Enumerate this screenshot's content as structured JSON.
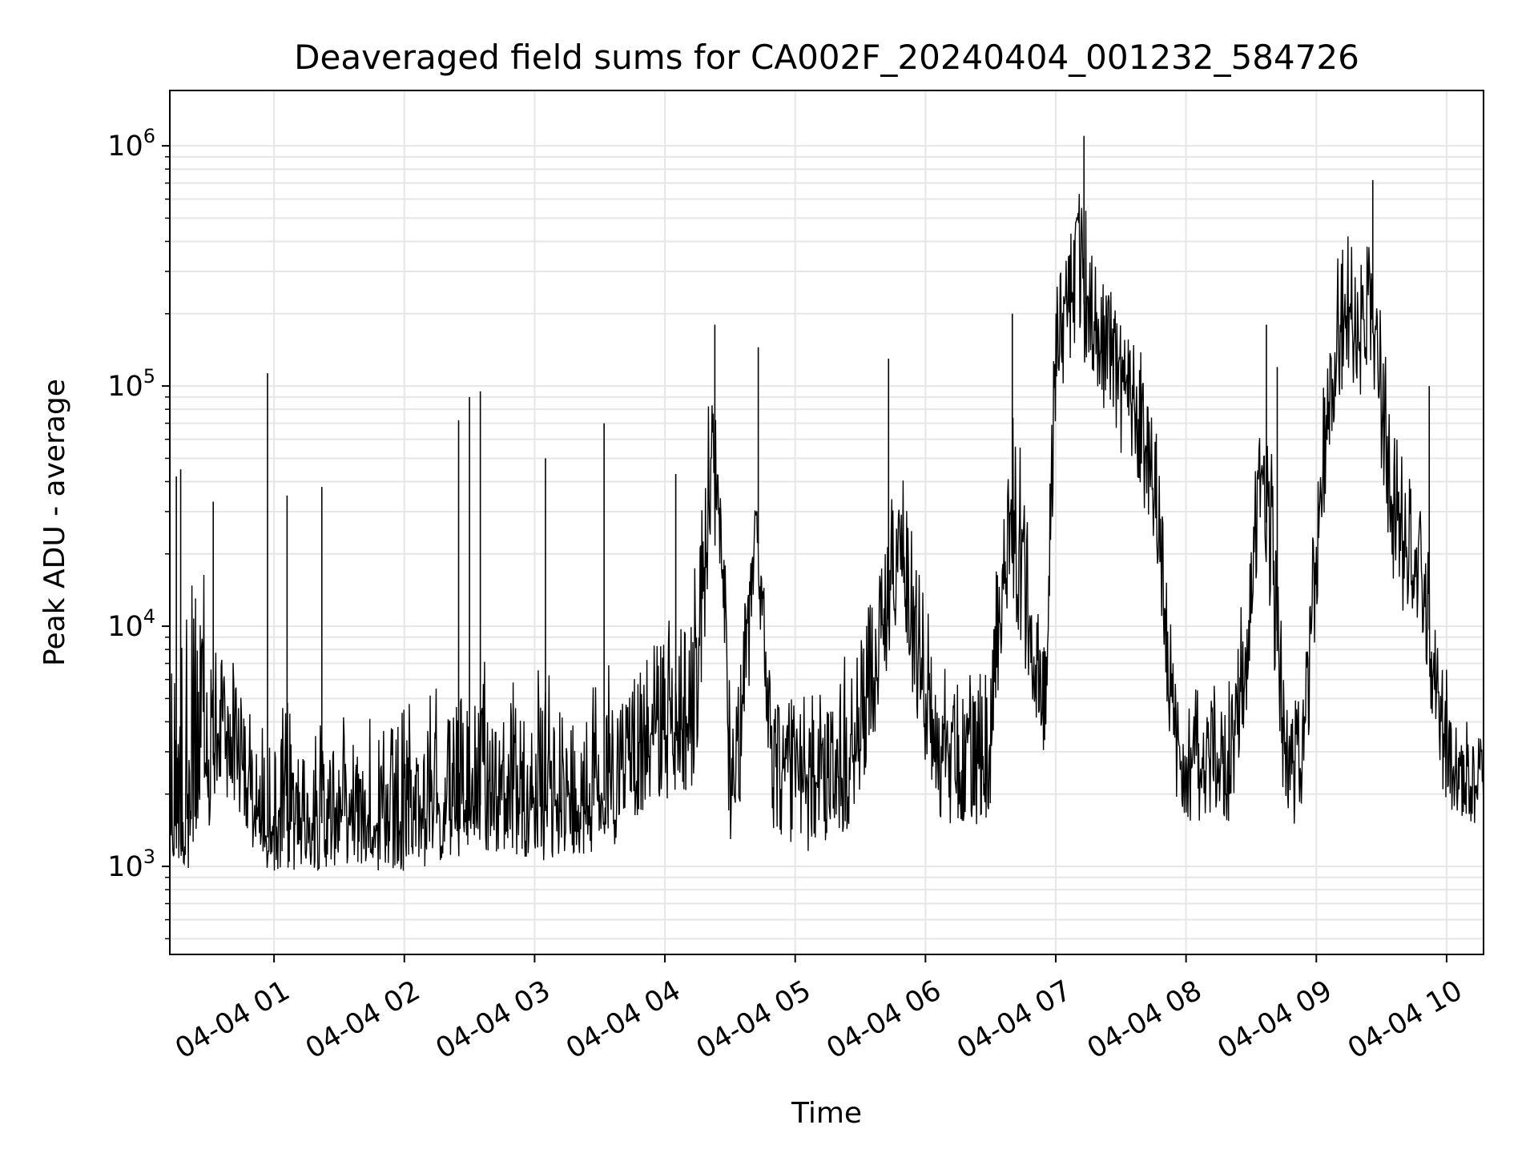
{
  "chart_data": {
    "type": "line",
    "title": "Deaveraged field sums for CA002F_20240404_001232_584726",
    "xlabel": "Time",
    "ylabel": "Peak ADU - average",
    "yscale": "log",
    "ylim": [
      430,
      1700000
    ],
    "xlim": [
      "2024-04-04 00:12",
      "2024-04-04 10:17"
    ],
    "x_ticks": [
      {
        "t": "2024-04-04 01:00",
        "label": "04-04 01"
      },
      {
        "t": "2024-04-04 02:00",
        "label": "04-04 02"
      },
      {
        "t": "2024-04-04 03:00",
        "label": "04-04 03"
      },
      {
        "t": "2024-04-04 04:00",
        "label": "04-04 04"
      },
      {
        "t": "2024-04-04 05:00",
        "label": "04-04 05"
      },
      {
        "t": "2024-04-04 06:00",
        "label": "04-04 06"
      },
      {
        "t": "2024-04-04 07:00",
        "label": "04-04 07"
      },
      {
        "t": "2024-04-04 08:00",
        "label": "04-04 08"
      },
      {
        "t": "2024-04-04 09:00",
        "label": "04-04 09"
      },
      {
        "t": "2024-04-04 10:00",
        "label": "04-04 10"
      }
    ],
    "y_ticks": [
      {
        "value": 1000,
        "base": "10",
        "exp": "3"
      },
      {
        "value": 10000,
        "base": "10",
        "exp": "4"
      },
      {
        "value": 100000,
        "base": "10",
        "exp": "5"
      },
      {
        "value": 1000000,
        "base": "10",
        "exp": "6"
      }
    ],
    "grid": true,
    "line_color": "#000000",
    "grid_color": "#e6e6e6",
    "series": [
      {
        "x": [
          "2024-04-04 00:12",
          "2024-04-04 00:20",
          "2024-04-04 00:30",
          "2024-04-04 00:36",
          "2024-04-04 00:42",
          "2024-04-04 00:48",
          "2024-04-04 00:55",
          "2024-04-04 01:05",
          "2024-04-04 01:20",
          "2024-04-04 01:35",
          "2024-04-04 01:50",
          "2024-04-04 02:05",
          "2024-04-04 02:20",
          "2024-04-04 02:35",
          "2024-04-04 02:50",
          "2024-04-04 03:05",
          "2024-04-04 03:20",
          "2024-04-04 03:35",
          "2024-04-04 03:45",
          "2024-04-04 03:55",
          "2024-04-04 04:05",
          "2024-04-04 04:15",
          "2024-04-04 04:22",
          "2024-04-04 04:25",
          "2024-04-04 04:30",
          "2024-04-04 04:35",
          "2024-04-04 04:42",
          "2024-04-04 04:50",
          "2024-04-04 04:55",
          "2024-04-04 05:05",
          "2024-04-04 05:15",
          "2024-04-04 05:25",
          "2024-04-04 05:35",
          "2024-04-04 05:42",
          "2024-04-04 05:48",
          "2024-04-04 05:55",
          "2024-04-04 06:05",
          "2024-04-04 06:15",
          "2024-04-04 06:25",
          "2024-04-04 06:30",
          "2024-04-04 06:35",
          "2024-04-04 06:40",
          "2024-04-04 06:45",
          "2024-04-04 06:50",
          "2024-04-04 06:55",
          "2024-04-04 07:00",
          "2024-04-04 07:05",
          "2024-04-04 07:10",
          "2024-04-04 07:15",
          "2024-04-04 07:20",
          "2024-04-04 07:30",
          "2024-04-04 07:40",
          "2024-04-04 07:48",
          "2024-04-04 07:55",
          "2024-04-04 08:00",
          "2024-04-04 08:10",
          "2024-04-04 08:20",
          "2024-04-04 08:28",
          "2024-04-04 08:35",
          "2024-04-04 08:40",
          "2024-04-04 08:45",
          "2024-04-04 08:50",
          "2024-04-04 08:55",
          "2024-04-04 09:00",
          "2024-04-04 09:05",
          "2024-04-04 09:10",
          "2024-04-04 09:15",
          "2024-04-04 09:20",
          "2024-04-04 09:25",
          "2024-04-04 09:30",
          "2024-04-04 09:35",
          "2024-04-04 09:40",
          "2024-04-04 09:45",
          "2024-04-04 09:50",
          "2024-04-04 09:55",
          "2024-04-04 10:00",
          "2024-04-04 10:05",
          "2024-04-04 10:10",
          "2024-04-04 10:17"
        ],
        "values": [
          1400,
          1500,
          2500,
          3500,
          3000,
          2000,
          1300,
          1400,
          1500,
          1600,
          1400,
          1500,
          1700,
          1800,
          1900,
          1700,
          1800,
          1900,
          2800,
          3200,
          3500,
          4000,
          60000,
          30000,
          2200,
          3000,
          30000,
          2500,
          2400,
          2000,
          2100,
          2500,
          5000,
          8000,
          30000,
          10000,
          2500,
          2500,
          2500,
          2800,
          15000,
          20000,
          15000,
          5000,
          4000,
          150000,
          200000,
          250000,
          200000,
          150000,
          100000,
          60000,
          20000,
          3000,
          2500,
          2500,
          2500,
          8000,
          40000,
          15000,
          3000,
          2500,
          3000,
          20000,
          60000,
          150000,
          200000,
          150000,
          200000,
          80000,
          30000,
          20000,
          20000,
          15000,
          5000,
          3000,
          2000,
          2200,
          2000
        ],
        "upper": [
          15000,
          30000,
          20000,
          10000,
          8000,
          5000,
          4000,
          5000,
          4000,
          5000,
          4000,
          5000,
          6000,
          8000,
          6000,
          7000,
          6000,
          7000,
          8000,
          12000,
          15000,
          20000,
          150000,
          80000,
          8000,
          10000,
          30000,
          8000,
          6000,
          5000,
          6000,
          8000,
          20000,
          30000,
          60000,
          40000,
          7000,
          7000,
          7000,
          8000,
          50000,
          80000,
          50000,
          20000,
          12000,
          400000,
          600000,
          700000,
          500000,
          400000,
          250000,
          150000,
          60000,
          8000,
          6000,
          6000,
          6000,
          20000,
          100000,
          50000,
          8000,
          6000,
          8000,
          50000,
          150000,
          350000,
          450000,
          400000,
          500000,
          200000,
          80000,
          50000,
          40000,
          35000,
          12000,
          8000,
          4000,
          4000,
          4000
        ],
        "lower": [
          900,
          800,
          1000,
          1500,
          1500,
          1000,
          800,
          800,
          800,
          850,
          800,
          800,
          850,
          900,
          900,
          850,
          900,
          950,
          1200,
          1500,
          1500,
          1700,
          20000,
          8000,
          1000,
          1300,
          10000,
          1100,
          1000,
          900,
          1000,
          1100,
          2500,
          4000,
          10000,
          3000,
          1200,
          1200,
          1200,
          1300,
          6000,
          10000,
          6000,
          3000,
          2500,
          60000,
          90000,
          100000,
          90000,
          70000,
          40000,
          25000,
          8000,
          1500,
          1200,
          1200,
          1200,
          3500,
          15000,
          6000,
          1500,
          1200,
          1500,
          8000,
          30000,
          70000,
          80000,
          70000,
          70000,
          35000,
          12000,
          8000,
          8000,
          6000,
          2000,
          1500,
          1200,
          1300,
          1300
        ]
      }
    ],
    "spikes": [
      {
        "x": "2024-04-04 00:15",
        "y": 42000
      },
      {
        "x": "2024-04-04 00:17",
        "y": 45000
      },
      {
        "x": "2024-04-04 00:32",
        "y": 33000
      },
      {
        "x": "2024-04-04 00:57",
        "y": 113000
      },
      {
        "x": "2024-04-04 01:06",
        "y": 35000
      },
      {
        "x": "2024-04-04 01:22",
        "y": 38000
      },
      {
        "x": "2024-04-04 02:25",
        "y": 72000
      },
      {
        "x": "2024-04-04 02:30",
        "y": 90000
      },
      {
        "x": "2024-04-04 02:35",
        "y": 95000
      },
      {
        "x": "2024-04-04 03:05",
        "y": 50000
      },
      {
        "x": "2024-04-04 03:32",
        "y": 70000
      },
      {
        "x": "2024-04-04 04:05",
        "y": 43000
      },
      {
        "x": "2024-04-04 04:23",
        "y": 180000
      },
      {
        "x": "2024-04-04 04:43",
        "y": 145000
      },
      {
        "x": "2024-04-04 05:43",
        "y": 130000
      },
      {
        "x": "2024-04-04 06:40",
        "y": 200000
      },
      {
        "x": "2024-04-04 07:13",
        "y": 1100000
      },
      {
        "x": "2024-04-04 08:37",
        "y": 180000
      },
      {
        "x": "2024-04-04 08:42",
        "y": 120000
      },
      {
        "x": "2024-04-04 09:26",
        "y": 720000
      },
      {
        "x": "2024-04-04 09:52",
        "y": 100000
      }
    ]
  }
}
